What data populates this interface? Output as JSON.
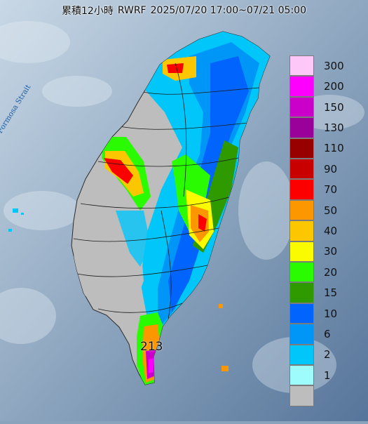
{
  "map": {
    "title": {
      "prefix": "累積12小時",
      "model": "RWRF",
      "period": "2025/07/20 17:00~07/21 05:00"
    },
    "water_label": "Formosa Strait",
    "peak_value_label": "213",
    "colors": {
      "ocean_light": "#b2c6d8",
      "ocean_dark": "#4d6b8e",
      "land_base": "#bdbdbd",
      "boundary": "#222222"
    },
    "legend": {
      "unit": "",
      "items": [
        {
          "label": "300",
          "color": "#fdc8f7"
        },
        {
          "label": "200",
          "color": "#fd00fd"
        },
        {
          "label": "150",
          "color": "#ca00ca"
        },
        {
          "label": "130",
          "color": "#9a009a"
        },
        {
          "label": "110",
          "color": "#980000"
        },
        {
          "label": "90",
          "color": "#c90000"
        },
        {
          "label": "70",
          "color": "#fc0000"
        },
        {
          "label": "50",
          "color": "#fc9700"
        },
        {
          "label": "40",
          "color": "#fcc600"
        },
        {
          "label": "30",
          "color": "#fbfb00"
        },
        {
          "label": "20",
          "color": "#2afb00"
        },
        {
          "label": "15",
          "color": "#2f9900"
        },
        {
          "label": "10",
          "color": "#0064fd"
        },
        {
          "label": "6",
          "color": "#0096f7"
        },
        {
          "label": "2",
          "color": "#00c6fa"
        },
        {
          "label": "1",
          "color": "#9efcfd"
        },
        {
          "label": "",
          "color": "#bdbdbd"
        }
      ]
    }
  }
}
